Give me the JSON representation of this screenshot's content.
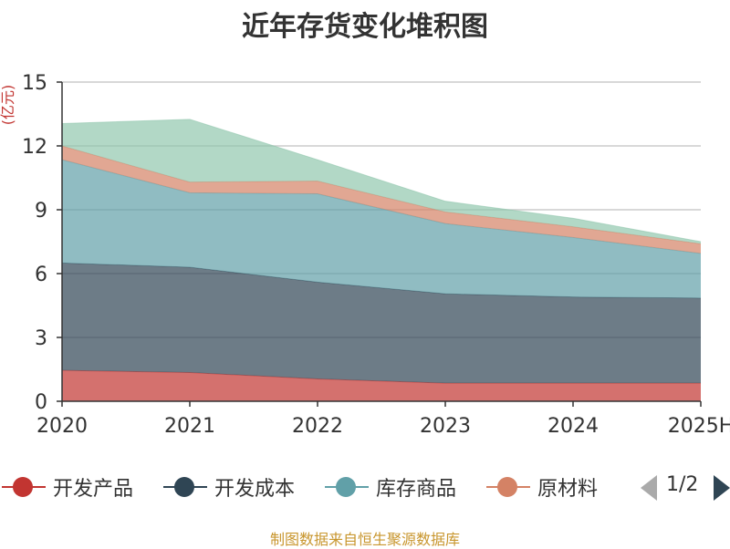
{
  "chart_data": {
    "type": "area",
    "stacked": true,
    "title": "近年存货变化堆积图",
    "ylabel": "(亿元)",
    "xlabel": "",
    "categories": [
      "2020",
      "2021",
      "2022",
      "2023",
      "2024",
      "2025H"
    ],
    "ylim": [
      0,
      15
    ],
    "yticks": [
      0,
      3,
      6,
      9,
      12,
      15
    ],
    "grid": true,
    "legend_position": "bottom",
    "series": [
      {
        "name": "开发产品",
        "color": "#c23531",
        "values": [
          1.45,
          1.35,
          1.05,
          0.85,
          0.85,
          0.85
        ]
      },
      {
        "name": "开发成本",
        "color": "#2f4554",
        "values": [
          5.05,
          4.95,
          4.55,
          4.2,
          4.05,
          4.0
        ]
      },
      {
        "name": "库存商品",
        "color": "#61a0a8",
        "values": [
          4.85,
          3.5,
          4.15,
          3.3,
          2.8,
          2.1
        ]
      },
      {
        "name": "原材料",
        "color": "#d48265",
        "values": [
          0.65,
          0.5,
          0.6,
          0.55,
          0.5,
          0.45
        ]
      },
      {
        "name": "",
        "color": "#91c7ae",
        "values": [
          1.05,
          2.95,
          1.0,
          0.5,
          0.4,
          0.1
        ]
      }
    ]
  },
  "legend": {
    "items": [
      {
        "label": "开发产品",
        "color": "#c23531"
      },
      {
        "label": "开发成本",
        "color": "#2f4554"
      },
      {
        "label": "库存商品",
        "color": "#61a0a8"
      },
      {
        "label": "原材料",
        "color": "#d48265"
      }
    ],
    "pager": "1/2"
  },
  "source_note": "制图数据来自恒生聚源数据库"
}
